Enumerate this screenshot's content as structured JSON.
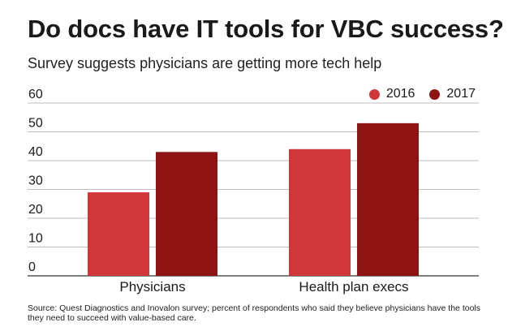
{
  "title": "Do docs have IT tools for VBC success?",
  "subtitle": "Survey suggests physicians are getting more tech help",
  "source": "Source: Quest Diagnostics and Inovalon survey; percent of respondents who said they believe physicians have the tools they need to succeed with value-based care.",
  "colors": {
    "series2016": "#d0373a",
    "series2017": "#8f1414",
    "grid": "#bdbdbd",
    "axis": "#333333"
  },
  "chart_data": {
    "type": "bar",
    "categories": [
      "Physicians",
      "Health plan execs"
    ],
    "series": [
      {
        "name": "2016",
        "values": [
          29,
          44
        ]
      },
      {
        "name": "2017",
        "values": [
          43,
          53
        ]
      }
    ],
    "yticks": [
      0,
      10,
      20,
      30,
      40,
      50,
      60
    ],
    "ylim": [
      0,
      60
    ],
    "grid": true,
    "legend": "top-right",
    "title": "Do docs have IT tools for VBC success?",
    "subtitle": "Survey suggests physicians are getting more tech help",
    "xlabel": "",
    "ylabel": ""
  }
}
